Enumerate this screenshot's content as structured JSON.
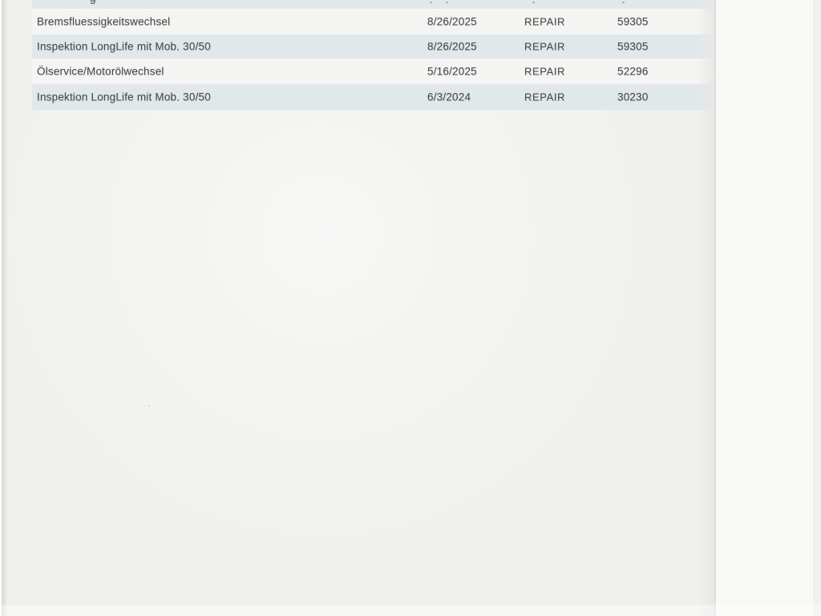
{
  "table": {
    "partial_top_row": {
      "visible_fragment": "g"
    },
    "rows": [
      {
        "description": "Bremsfluessigkeitswechsel",
        "date": "8/26/2025",
        "type": "REPAIR",
        "mileage": "59305"
      },
      {
        "description": "Inspektion LongLife mit Mob. 30/50",
        "date": "8/26/2025",
        "type": "REPAIR",
        "mileage": "59305"
      },
      {
        "description": "Ölservice/Motorölwechsel",
        "date": "5/16/2025",
        "type": "REPAIR",
        "mileage": "52296"
      },
      {
        "description": "Inspektion LongLife mit Mob. 30/50",
        "date": "6/3/2024",
        "type": "REPAIR",
        "mileage": "30230"
      }
    ]
  },
  "colors": {
    "page_background": "#f0f0ee",
    "row_shaded": "#e1e8ea",
    "row_plain": "#f4f5f3",
    "text": "#4a4a4a",
    "scan_margin_right": "#f8f8f6",
    "page_boundary_line": "#dededc"
  }
}
